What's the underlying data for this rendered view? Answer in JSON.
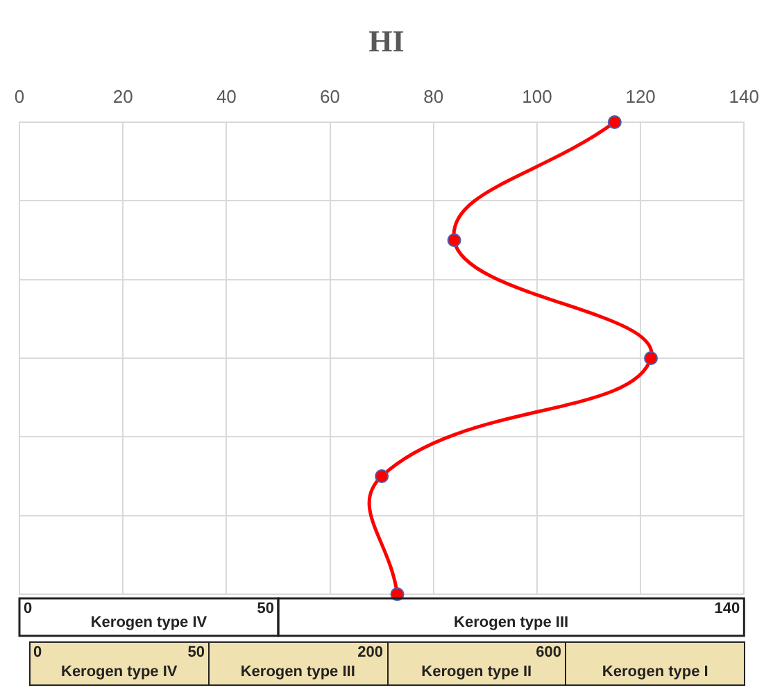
{
  "chart_data": {
    "type": "line",
    "title": "HI",
    "orientation": "horizontal",
    "categories": [
      null,
      null,
      null,
      null,
      null
    ],
    "series": [
      {
        "color": "#ff0000",
        "values": [
          115,
          84,
          122,
          70,
          73
        ]
      }
    ],
    "xlim": [
      0,
      140
    ],
    "xticks": [
      0,
      20,
      40,
      60,
      80,
      100,
      120,
      140
    ],
    "grid": true,
    "marker": "circle",
    "line_style": "solid",
    "legend": false,
    "annotations": [
      "0",
      "Kerogen type IV",
      "50",
      "Kerogen type III",
      "140",
      "0",
      "Kerogen type IV",
      "50",
      "Kerogen type III",
      "200",
      "Kerogen type II",
      "600",
      "Kerogen type I"
    ]
  }
}
